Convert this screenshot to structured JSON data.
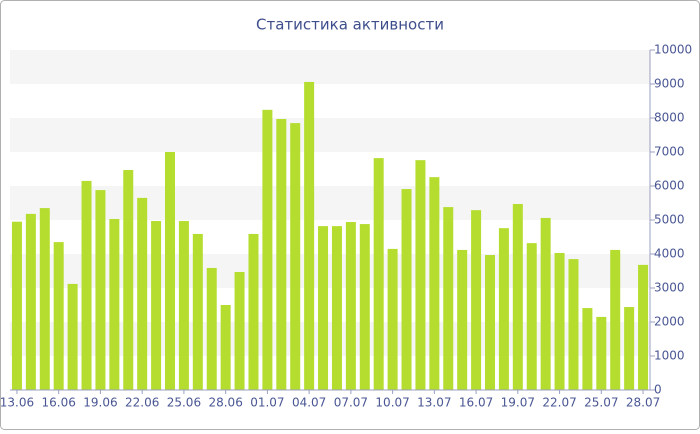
{
  "chart_data": {
    "type": "bar",
    "title": "Статистика активности",
    "categories": [
      "13.06",
      null,
      null,
      "16.06",
      null,
      null,
      "19.06",
      null,
      null,
      "22.06",
      null,
      null,
      "25.06",
      null,
      null,
      "28.06",
      null,
      null,
      "01.07",
      null,
      null,
      "04.07",
      null,
      null,
      "07.07",
      null,
      null,
      "10.07",
      null,
      null,
      "13.07",
      null,
      null,
      "16.07",
      null,
      null,
      "19.07",
      null,
      null,
      "22.07",
      null,
      null,
      "25.07",
      null,
      null,
      "28.07"
    ],
    "values": [
      4950,
      5180,
      5350,
      4350,
      3120,
      6150,
      5880,
      5030,
      6470,
      5650,
      4970,
      7000,
      4970,
      4590,
      3590,
      2500,
      3470,
      4590,
      8240,
      7970,
      7850,
      9060,
      4820,
      4820,
      4940,
      4880,
      6820,
      4150,
      5910,
      6760,
      6260,
      5380,
      4120,
      5290,
      3970,
      4760,
      5470,
      4320,
      5060,
      4030,
      3850,
      2410,
      2150,
      4120,
      2440,
      3680
    ],
    "color": "#b5dd2f",
    "ylim": [
      0,
      10000
    ],
    "yticks": [
      0,
      1000,
      2000,
      3000,
      4000,
      5000,
      6000,
      7000,
      8000,
      9000,
      10000
    ],
    "grid": true
  }
}
